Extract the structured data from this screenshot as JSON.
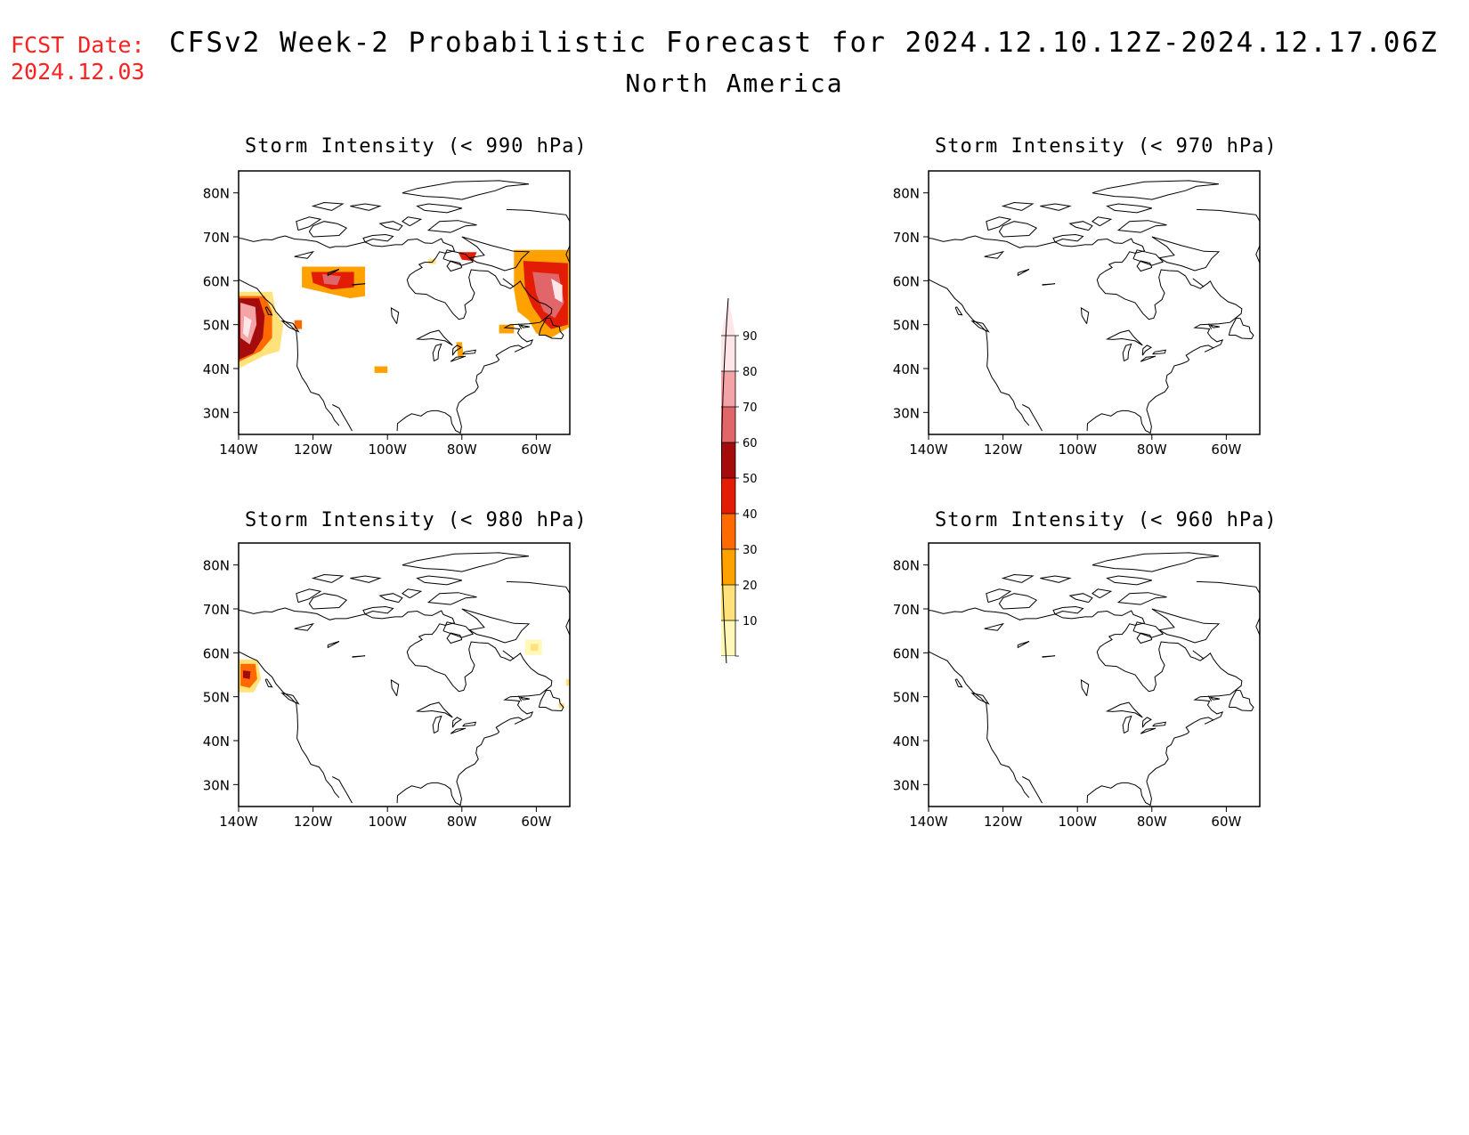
{
  "header": {
    "fcst_label": "FCST Date:",
    "fcst_date": "2024.12.03",
    "title": "CFSv2 Week-2 Probabilistic Forecast for 2024.12.10.12Z-2024.12.17.06Z",
    "region": "North America"
  },
  "axes": {
    "lat_ticks": [
      "80N",
      "70N",
      "60N",
      "50N",
      "40N",
      "30N"
    ],
    "lon_ticks": [
      "140W",
      "120W",
      "100W",
      "80W",
      "60W"
    ]
  },
  "colorbar": {
    "levels": [
      "90",
      "80",
      "70",
      "60",
      "50",
      "40",
      "30",
      "20",
      "10"
    ],
    "colors": [
      "#fde6e8",
      "#f4a3a6",
      "#e06669",
      "#a50b0b",
      "#e31c06",
      "#ff6a00",
      "#ffa200",
      "#ffe27a",
      "#fff8b8"
    ]
  },
  "panels": [
    {
      "title": "Storm Intensity (< 990 hPa)",
      "blobs": [
        {
          "area": "NE Pacific off British Columbia",
          "max": "90"
        },
        {
          "area": "Northern Alberta / Saskatchewan",
          "max": "60"
        },
        {
          "area": "Labrador Sea / Newfoundland",
          "max": "90"
        },
        {
          "area": "Hudson Strait",
          "max": "50"
        },
        {
          "area": "Great Lakes",
          "max": "30"
        },
        {
          "area": "Northern Plains",
          "max": "30"
        }
      ]
    },
    {
      "title": "Storm Intensity (< 970 hPa)",
      "blobs": []
    },
    {
      "title": "Storm Intensity (< 980 hPa)",
      "blobs": [
        {
          "area": "Gulf of Alaska coast",
          "max": "60"
        },
        {
          "area": "Labrador",
          "max": "20"
        }
      ]
    },
    {
      "title": "Storm Intensity (< 960 hPa)",
      "blobs": []
    }
  ]
}
